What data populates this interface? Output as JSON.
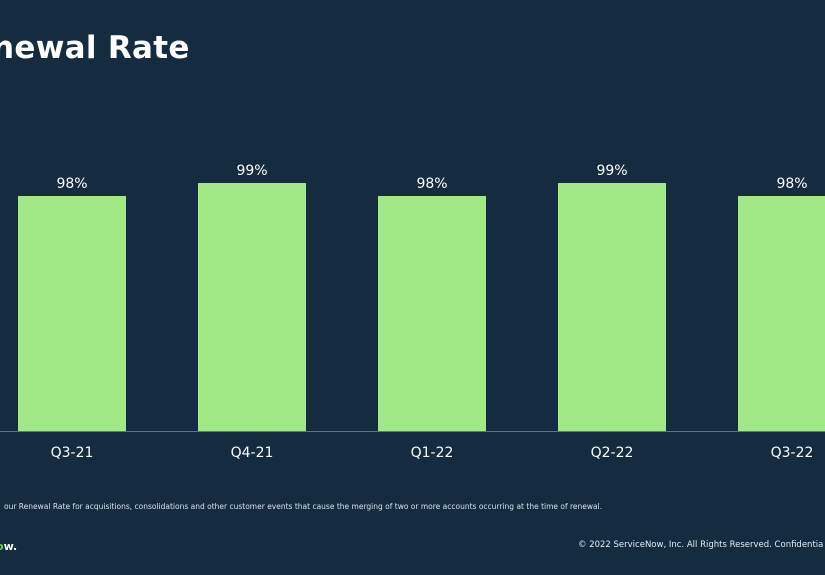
{
  "slide": {
    "title": "newal Rate",
    "footnote": "our Renewal Rate for acquisitions, consolidations and other customer events that cause the merging of two or more accounts occurring at the time of renewal.",
    "logo_prefix": "",
    "logo_o": "o",
    "logo_suffix": "w.",
    "logo_text": "ow.",
    "copyright": "© 2022 ServiceNow, Inc. All Rights Reserved. Confidentia"
  },
  "colors": {
    "background": "#142b40",
    "bar": "#a3e887",
    "text": "#ffffff",
    "logo_accent": "#62d84e"
  },
  "chart_data": {
    "type": "bar",
    "title": "",
    "xlabel": "",
    "ylabel": "",
    "categories": [
      "Q3-21",
      "Q4-21",
      "Q1-22",
      "Q2-22",
      "Q3-22"
    ],
    "values": [
      98,
      99,
      98,
      99,
      98
    ],
    "data_labels": [
      "98%",
      "99%",
      "98%",
      "99%",
      "98%"
    ],
    "ylim": [
      0,
      100
    ],
    "grid": false,
    "legend": "none"
  }
}
